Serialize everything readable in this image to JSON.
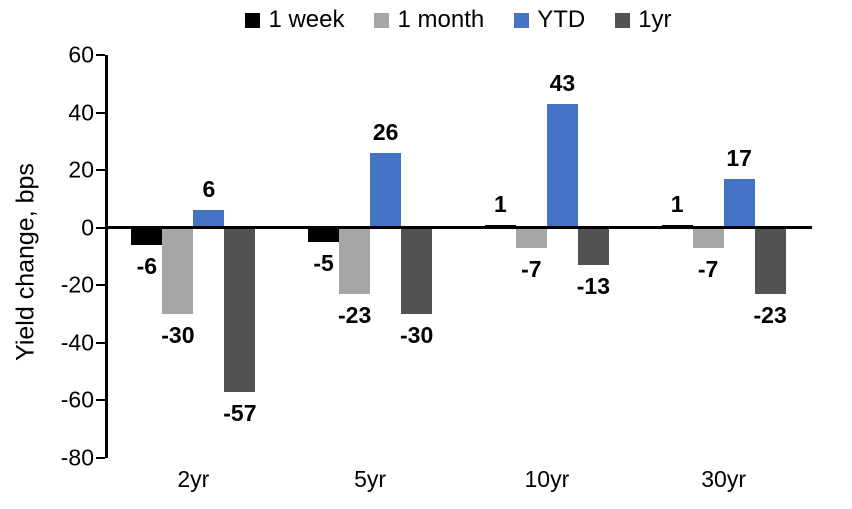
{
  "chart_data": {
    "type": "bar",
    "title": "",
    "ylabel": "Yield change, bps",
    "xlabel": "",
    "categories": [
      "2yr",
      "5yr",
      "10yr",
      "30yr"
    ],
    "series": [
      {
        "name": "1 week",
        "color": "#000000",
        "values": [
          -6,
          -5,
          1,
          1
        ]
      },
      {
        "name": "1 month",
        "color": "#A6A6A6",
        "values": [
          -30,
          -23,
          -7,
          -7
        ]
      },
      {
        "name": "YTD",
        "color": "#4472C4",
        "values": [
          6,
          26,
          43,
          17
        ]
      },
      {
        "name": "1yr",
        "color": "#525252",
        "values": [
          -57,
          -30,
          -13,
          -23
        ]
      }
    ],
    "ylim": [
      -80,
      60
    ],
    "yticks": [
      60,
      40,
      20,
      0,
      -20,
      -40,
      -60,
      -80
    ],
    "grid": false,
    "legend_position": "top",
    "data_labels": true,
    "axis_color": "#000000",
    "background_color": "#FFFFFF"
  }
}
